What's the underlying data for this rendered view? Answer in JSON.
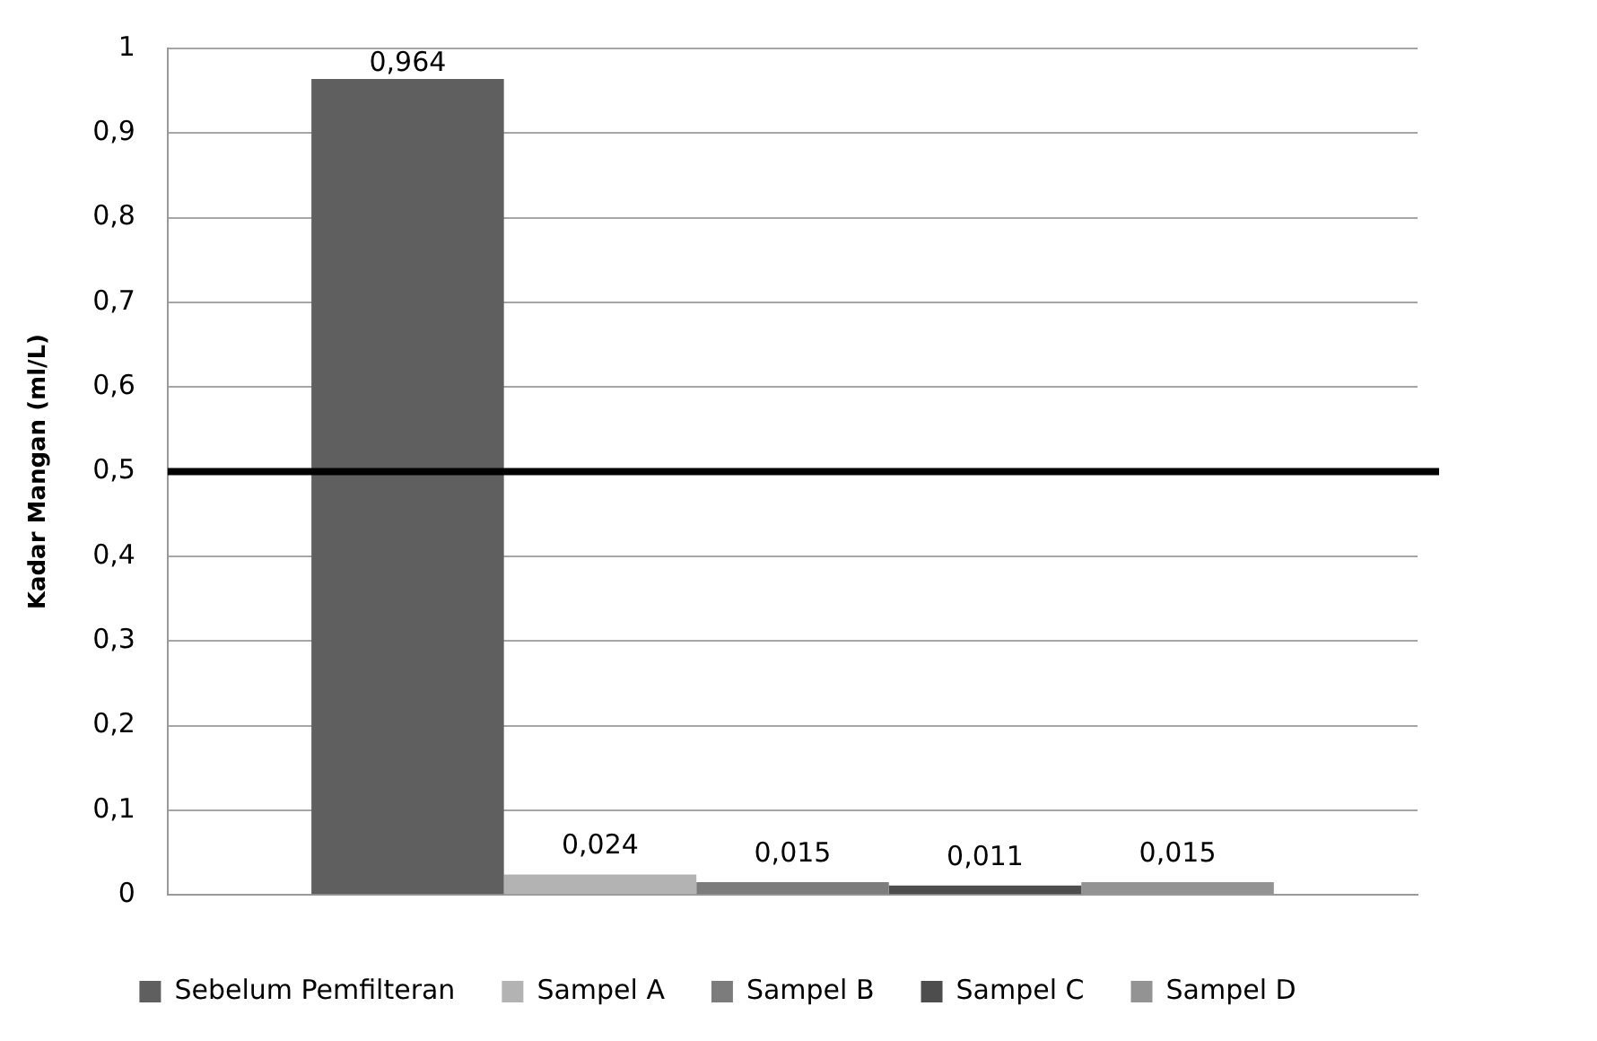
{
  "chart_data": {
    "type": "bar",
    "ylabel": "Kadar Mangan (ml/L)",
    "categories": [
      null
    ],
    "series": [
      {
        "name": "Sebelum Pemfilteran",
        "color": "#5f5f5f",
        "values": [
          0.964
        ],
        "value_labels": [
          "0,964"
        ]
      },
      {
        "name": "Sampel A",
        "color": "#b3b3b3",
        "values": [
          0.024
        ],
        "value_labels": [
          "0,024"
        ]
      },
      {
        "name": "Sampel B",
        "color": "#7c7c7c",
        "values": [
          0.015
        ],
        "value_labels": [
          "0,015"
        ]
      },
      {
        "name": "Sampel C",
        "color": "#4d4d4d",
        "values": [
          0.011
        ],
        "value_labels": [
          "0,011"
        ]
      },
      {
        "name": "Sampel D",
        "color": "#939393",
        "values": [
          0.015
        ],
        "value_labels": [
          "0,015"
        ]
      }
    ],
    "ylim": [
      0,
      1
    ],
    "yticks": [
      0,
      {
        "value": 0.1,
        "label": "0,1"
      },
      {
        "value": 0.2,
        "label": "0,2"
      },
      {
        "value": 0.3,
        "label": "0,3"
      },
      {
        "value": 0.4,
        "label": "0,4"
      },
      {
        "value": 0.5,
        "label": "0,5"
      },
      {
        "value": 0.6,
        "label": "0,6"
      },
      {
        "value": 0.7,
        "label": "0,7"
      },
      {
        "value": 0.8,
        "label": "0,8"
      },
      {
        "value": 0.9,
        "label": "0,9"
      },
      1
    ],
    "ref_lines": [
      {
        "axis": "y",
        "value": 0.5,
        "color": "#000000"
      }
    ],
    "grid": "y",
    "legend": "bottom"
  }
}
